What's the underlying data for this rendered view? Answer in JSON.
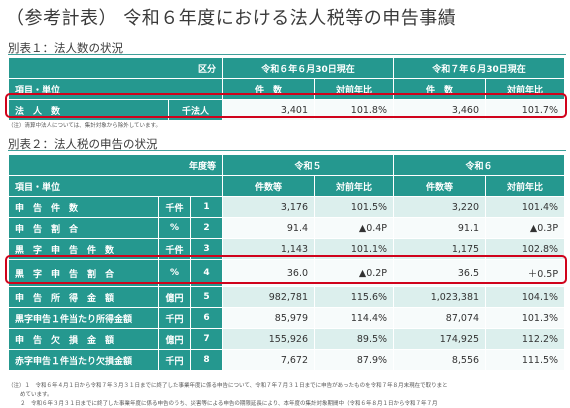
{
  "title": "（参考計表） 令和６年度における法人税等の申告事績",
  "table1": {
    "heading": "別表１：法人数の状況",
    "kubun": "区分",
    "item_unit": "項目・単位",
    "period1": "令和６年６月30日現在",
    "period2": "令和７年６月30日現在",
    "col_count": "件　数",
    "col_ratio": "対前年比",
    "row": {
      "label": "法　人　数",
      "unit": "千法人",
      "v1": "3,401",
      "r1": "101.8%",
      "v2": "3,460",
      "r2": "101.7%"
    },
    "note": "（注）清算中法人については、集計対象から除外しています。"
  },
  "table2": {
    "heading": "別表２：法人税の申告の状況",
    "year_label": "年度等",
    "item_unit": "項目・単位",
    "year1": "令和５",
    "year2": "令和６",
    "col_count": "件数等",
    "col_ratio": "対前年比",
    "rows": [
      {
        "label": "申　告　件　数",
        "unit": "千件",
        "no": "1",
        "v1": "3,176",
        "r1": "101.5%",
        "v2": "3,220",
        "r2": "101.4%"
      },
      {
        "label": "申　告　割　合",
        "unit": "%",
        "no": "2",
        "v1": "91.4",
        "r1": "▲0.4P",
        "v2": "91.1",
        "r2": "▲0.3P"
      },
      {
        "label": "黒　字　申　告　件　数",
        "unit": "千件",
        "no": "3",
        "v1": "1,143",
        "r1": "101.1%",
        "v2": "1,175",
        "r2": "102.8%"
      },
      {
        "label": "黒　字　申　告　割　合",
        "unit": "%",
        "no": "4",
        "v1": "36.0",
        "r1": "▲0.2P",
        "v2": "36.5",
        "r2": "＋0.5P"
      },
      {
        "label": "申　告　所　得　金　額",
        "unit": "億円",
        "no": "5",
        "v1": "982,781",
        "r1": "115.6%",
        "v2": "1,023,381",
        "r2": "104.1%"
      },
      {
        "label": "黒字申告１件当たり所得金額",
        "unit": "千円",
        "no": "6",
        "v1": "85,979",
        "r1": "114.4%",
        "v2": "87,074",
        "r2": "101.3%"
      },
      {
        "label": "申　告　欠　損　金　額",
        "unit": "億円",
        "no": "7",
        "v1": "155,926",
        "r1": "89.5%",
        "v2": "174,925",
        "r2": "112.2%"
      },
      {
        "label": "赤字申告１件当たり欠損金額",
        "unit": "千円",
        "no": "8",
        "v1": "7,672",
        "r1": "87.9%",
        "v2": "8,556",
        "r2": "111.5%"
      }
    ],
    "notes": [
      "（注）１　令和６年４月１日から令和７年３月３１日までに終了した事業年度に係る申告について、令和７年７月３１日までに申告があったものを令和７年８月末現在で取りまと",
      "めています。",
      "２　令和６年３月３１日までに終了した事業年度に係る申告のうち、災害等による申告の期限延長により、本年度の集計対象期間中（令和６年８月１日から令和７年７月"
    ]
  },
  "colors": {
    "header_teal": "#25988f",
    "row_alt": "#dcefed",
    "highlight_red": "#d0021b"
  }
}
